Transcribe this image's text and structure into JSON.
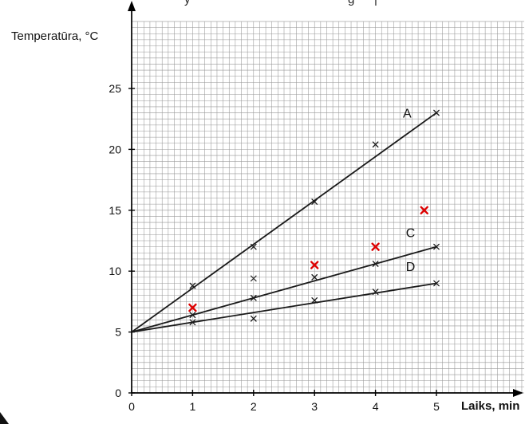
{
  "header": {
    "cropped_fragments": [
      "y",
      "g",
      "|"
    ]
  },
  "chart_data": {
    "type": "line",
    "title": "",
    "xlabel": "Laiks, min",
    "ylabel": "Temperatūra, °C",
    "xlim": [
      0,
      5
    ],
    "ylim": [
      0,
      30
    ],
    "xticks": [
      "0",
      "1",
      "2",
      "3",
      "4",
      "5"
    ],
    "yticks": [
      "0",
      "5",
      "10",
      "15",
      "20",
      "25"
    ],
    "grid": {
      "minor_x": 0.1,
      "minor_y": 0.5,
      "color": "#979797",
      "style": "graph-paper"
    },
    "marker": "x-cross",
    "series": [
      {
        "name": "A",
        "color": "#1a1a1a",
        "line": [
          [
            0,
            5
          ],
          [
            5,
            23
          ]
        ],
        "points": [
          [
            1,
            8.8
          ],
          [
            2,
            12
          ],
          [
            3,
            15.7
          ],
          [
            4,
            20.4
          ],
          [
            5,
            23
          ]
        ],
        "label_pos": [
          4.45,
          22.6
        ]
      },
      {
        "name": "C",
        "color": "#1a1a1a",
        "line": [
          [
            0,
            5
          ],
          [
            5,
            12
          ]
        ],
        "points": [
          [
            1,
            6.4
          ],
          [
            2,
            7.8
          ],
          [
            3,
            9.5
          ],
          [
            4,
            10.6
          ],
          [
            5,
            12
          ]
        ],
        "label_pos": [
          4.5,
          12.8
        ]
      },
      {
        "name": "D",
        "color": "#1a1a1a",
        "line": [
          [
            0,
            5
          ],
          [
            5,
            9
          ]
        ],
        "points": [
          [
            1,
            5.8
          ],
          [
            2,
            6.1
          ],
          [
            3,
            7.6
          ],
          [
            4,
            8.3
          ],
          [
            5,
            9
          ]
        ],
        "label_pos": [
          4.5,
          10.0
        ]
      }
    ],
    "stray_points": {
      "color": "#333333",
      "points": [
        [
          2,
          9.4
        ]
      ]
    },
    "red_points": {
      "color": "#dd0000",
      "points": [
        [
          1,
          7
        ],
        [
          3,
          10.5
        ],
        [
          4,
          12
        ],
        [
          4.8,
          15
        ]
      ]
    }
  }
}
